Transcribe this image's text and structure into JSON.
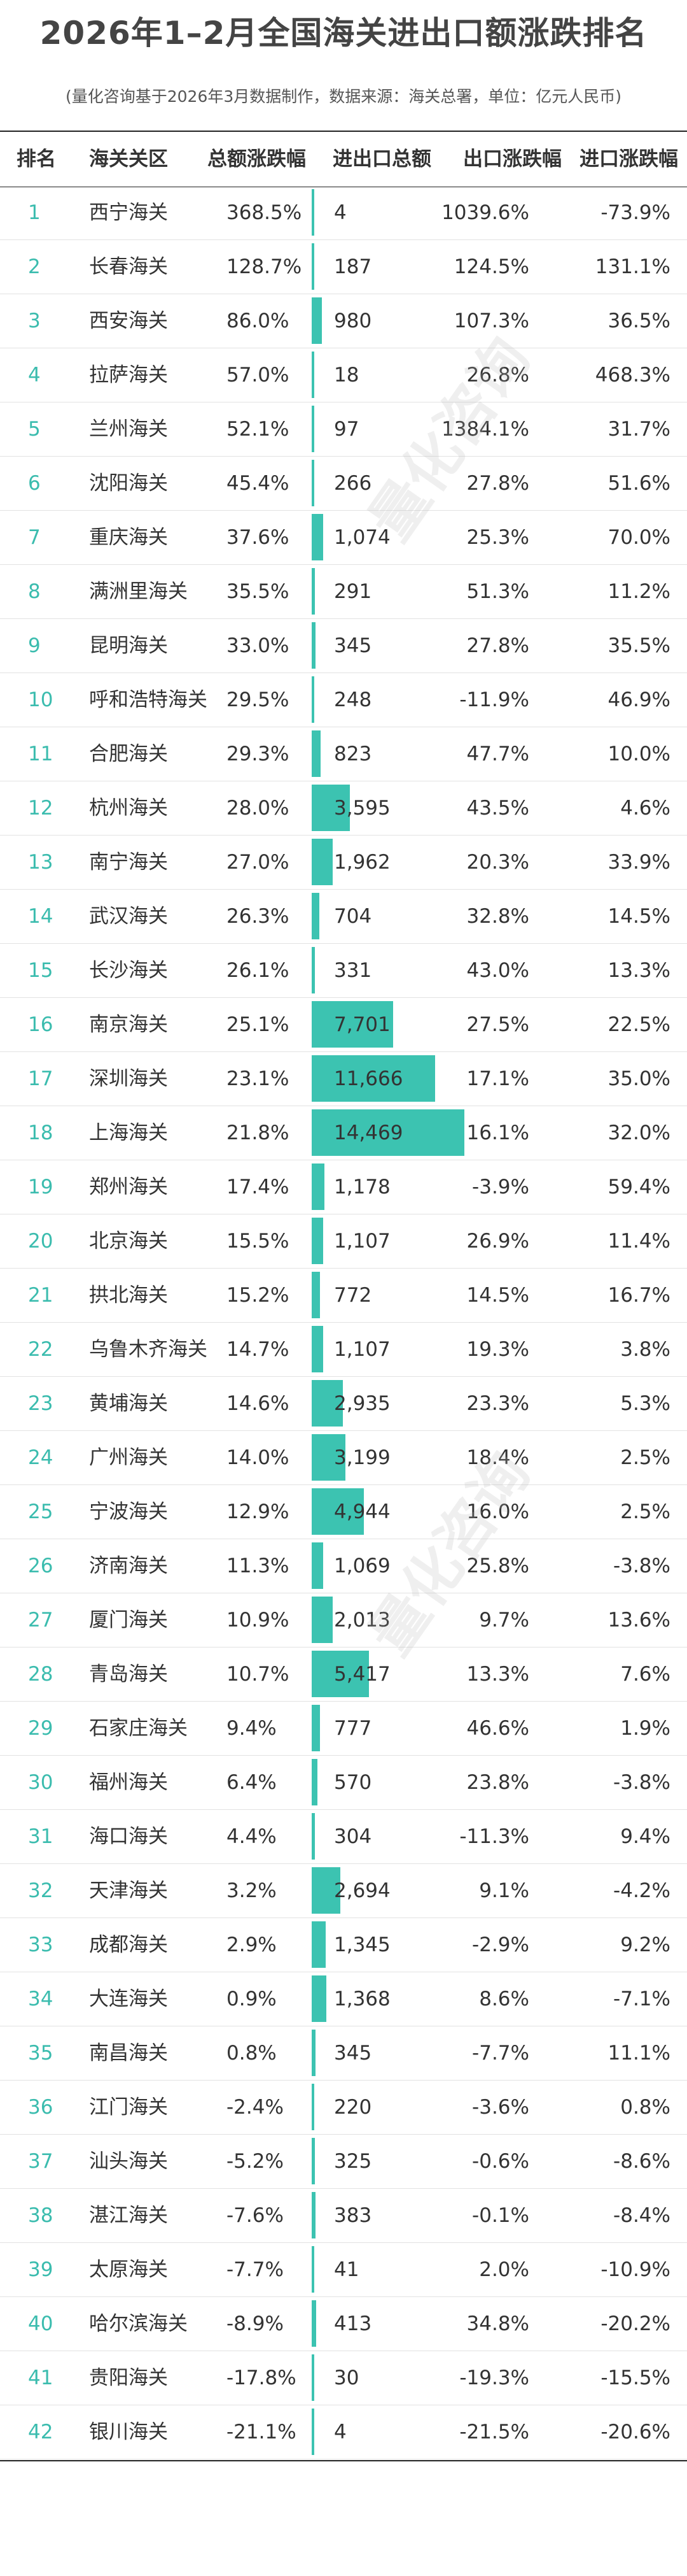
{
  "title": "2026年1–2月全国海关进出口额涨跌排名",
  "subtitle": "(量化咨询基于2026年3月数据制作，数据来源：海关总署，单位：亿元人民币)",
  "watermark": "量化咨询",
  "columns": {
    "rank": "排名",
    "name": "海关关区",
    "total_change": "总额涨跌幅",
    "trade_total": "进出口总额",
    "export_change": "出口涨跌幅",
    "import_change": "进口涨跌幅"
  },
  "colors": {
    "bar": "#3cc3b1",
    "rank": "#3bbcae"
  },
  "chart_data": {
    "type": "table",
    "bar_column": "trade_total",
    "rows": [
      {
        "rank": "1",
        "name": "西宁海关",
        "total_change": "368.5%",
        "trade_total": "4",
        "export_change": "1039.6%",
        "import_change": "-73.9%",
        "value": 4
      },
      {
        "rank": "2",
        "name": "长春海关",
        "total_change": "128.7%",
        "trade_total": "187",
        "export_change": "124.5%",
        "import_change": "131.1%",
        "value": 187
      },
      {
        "rank": "3",
        "name": "西安海关",
        "total_change": "86.0%",
        "trade_total": "980",
        "export_change": "107.3%",
        "import_change": "36.5%",
        "value": 980
      },
      {
        "rank": "4",
        "name": "拉萨海关",
        "total_change": "57.0%",
        "trade_total": "18",
        "export_change": "26.8%",
        "import_change": "468.3%",
        "value": 18
      },
      {
        "rank": "5",
        "name": "兰州海关",
        "total_change": "52.1%",
        "trade_total": "97",
        "export_change": "1384.1%",
        "import_change": "31.7%",
        "value": 97
      },
      {
        "rank": "6",
        "name": "沈阳海关",
        "total_change": "45.4%",
        "trade_total": "266",
        "export_change": "27.8%",
        "import_change": "51.6%",
        "value": 266
      },
      {
        "rank": "7",
        "name": "重庆海关",
        "total_change": "37.6%",
        "trade_total": "1,074",
        "export_change": "25.3%",
        "import_change": "70.0%",
        "value": 1074
      },
      {
        "rank": "8",
        "name": "满洲里海关",
        "total_change": "35.5%",
        "trade_total": "291",
        "export_change": "51.3%",
        "import_change": "11.2%",
        "value": 291
      },
      {
        "rank": "9",
        "name": "昆明海关",
        "total_change": "33.0%",
        "trade_total": "345",
        "export_change": "27.8%",
        "import_change": "35.5%",
        "value": 345
      },
      {
        "rank": "10",
        "name": "呼和浩特海关",
        "total_change": "29.5%",
        "trade_total": "248",
        "export_change": "-11.9%",
        "import_change": "46.9%",
        "value": 248
      },
      {
        "rank": "11",
        "name": "合肥海关",
        "total_change": "29.3%",
        "trade_total": "823",
        "export_change": "47.7%",
        "import_change": "10.0%",
        "value": 823
      },
      {
        "rank": "12",
        "name": "杭州海关",
        "total_change": "28.0%",
        "trade_total": "3,595",
        "export_change": "43.5%",
        "import_change": "4.6%",
        "value": 3595
      },
      {
        "rank": "13",
        "name": "南宁海关",
        "total_change": "27.0%",
        "trade_total": "1,962",
        "export_change": "20.3%",
        "import_change": "33.9%",
        "value": 1962
      },
      {
        "rank": "14",
        "name": "武汉海关",
        "total_change": "26.3%",
        "trade_total": "704",
        "export_change": "32.8%",
        "import_change": "14.5%",
        "value": 704
      },
      {
        "rank": "15",
        "name": "长沙海关",
        "total_change": "26.1%",
        "trade_total": "331",
        "export_change": "43.0%",
        "import_change": "13.3%",
        "value": 331
      },
      {
        "rank": "16",
        "name": "南京海关",
        "total_change": "25.1%",
        "trade_total": "7,701",
        "export_change": "27.5%",
        "import_change": "22.5%",
        "value": 7701
      },
      {
        "rank": "17",
        "name": "深圳海关",
        "total_change": "23.1%",
        "trade_total": "11,666",
        "export_change": "17.1%",
        "import_change": "35.0%",
        "value": 11666
      },
      {
        "rank": "18",
        "name": "上海海关",
        "total_change": "21.8%",
        "trade_total": "14,469",
        "export_change": "16.1%",
        "import_change": "32.0%",
        "value": 14469
      },
      {
        "rank": "19",
        "name": "郑州海关",
        "total_change": "17.4%",
        "trade_total": "1,178",
        "export_change": "-3.9%",
        "import_change": "59.4%",
        "value": 1178
      },
      {
        "rank": "20",
        "name": "北京海关",
        "total_change": "15.5%",
        "trade_total": "1,107",
        "export_change": "26.9%",
        "import_change": "11.4%",
        "value": 1107
      },
      {
        "rank": "21",
        "name": "拱北海关",
        "total_change": "15.2%",
        "trade_total": "772",
        "export_change": "14.5%",
        "import_change": "16.7%",
        "value": 772
      },
      {
        "rank": "22",
        "name": "乌鲁木齐海关",
        "total_change": "14.7%",
        "trade_total": "1,107",
        "export_change": "19.3%",
        "import_change": "3.8%",
        "value": 1107
      },
      {
        "rank": "23",
        "name": "黄埔海关",
        "total_change": "14.6%",
        "trade_total": "2,935",
        "export_change": "23.3%",
        "import_change": "5.3%",
        "value": 2935
      },
      {
        "rank": "24",
        "name": "广州海关",
        "total_change": "14.0%",
        "trade_total": "3,199",
        "export_change": "18.4%",
        "import_change": "2.5%",
        "value": 3199
      },
      {
        "rank": "25",
        "name": "宁波海关",
        "total_change": "12.9%",
        "trade_total": "4,944",
        "export_change": "16.0%",
        "import_change": "2.5%",
        "value": 4944
      },
      {
        "rank": "26",
        "name": "济南海关",
        "total_change": "11.3%",
        "trade_total": "1,069",
        "export_change": "25.8%",
        "import_change": "-3.8%",
        "value": 1069
      },
      {
        "rank": "27",
        "name": "厦门海关",
        "total_change": "10.9%",
        "trade_total": "2,013",
        "export_change": "9.7%",
        "import_change": "13.6%",
        "value": 2013
      },
      {
        "rank": "28",
        "name": "青岛海关",
        "total_change": "10.7%",
        "trade_total": "5,417",
        "export_change": "13.3%",
        "import_change": "7.6%",
        "value": 5417
      },
      {
        "rank": "29",
        "name": "石家庄海关",
        "total_change": "9.4%",
        "trade_total": "777",
        "export_change": "46.6%",
        "import_change": "1.9%",
        "value": 777
      },
      {
        "rank": "30",
        "name": "福州海关",
        "total_change": "6.4%",
        "trade_total": "570",
        "export_change": "23.8%",
        "import_change": "-3.8%",
        "value": 570
      },
      {
        "rank": "31",
        "name": "海口海关",
        "total_change": "4.4%",
        "trade_total": "304",
        "export_change": "-11.3%",
        "import_change": "9.4%",
        "value": 304
      },
      {
        "rank": "32",
        "name": "天津海关",
        "total_change": "3.2%",
        "trade_total": "2,694",
        "export_change": "9.1%",
        "import_change": "-4.2%",
        "value": 2694
      },
      {
        "rank": "33",
        "name": "成都海关",
        "total_change": "2.9%",
        "trade_total": "1,345",
        "export_change": "-2.9%",
        "import_change": "9.2%",
        "value": 1345
      },
      {
        "rank": "34",
        "name": "大连海关",
        "total_change": "0.9%",
        "trade_total": "1,368",
        "export_change": "8.6%",
        "import_change": "-7.1%",
        "value": 1368
      },
      {
        "rank": "35",
        "name": "南昌海关",
        "total_change": "0.8%",
        "trade_total": "345",
        "export_change": "-7.7%",
        "import_change": "11.1%",
        "value": 345
      },
      {
        "rank": "36",
        "name": "江门海关",
        "total_change": "-2.4%",
        "trade_total": "220",
        "export_change": "-3.6%",
        "import_change": "0.8%",
        "value": 220
      },
      {
        "rank": "37",
        "name": "汕头海关",
        "total_change": "-5.2%",
        "trade_total": "325",
        "export_change": "-0.6%",
        "import_change": "-8.6%",
        "value": 325
      },
      {
        "rank": "38",
        "name": "湛江海关",
        "total_change": "-7.6%",
        "trade_total": "383",
        "export_change": "-0.1%",
        "import_change": "-8.4%",
        "value": 383
      },
      {
        "rank": "39",
        "name": "太原海关",
        "total_change": "-7.7%",
        "trade_total": "41",
        "export_change": "2.0%",
        "import_change": "-10.9%",
        "value": 41
      },
      {
        "rank": "40",
        "name": "哈尔滨海关",
        "total_change": "-8.9%",
        "trade_total": "413",
        "export_change": "34.8%",
        "import_change": "-20.2%",
        "value": 413
      },
      {
        "rank": "41",
        "name": "贵阳海关",
        "total_change": "-17.8%",
        "trade_total": "30",
        "export_change": "-19.3%",
        "import_change": "-15.5%",
        "value": 30
      },
      {
        "rank": "42",
        "name": "银川海关",
        "total_change": "-21.1%",
        "trade_total": "4",
        "export_change": "-21.5%",
        "import_change": "-20.6%",
        "value": 4
      }
    ]
  }
}
